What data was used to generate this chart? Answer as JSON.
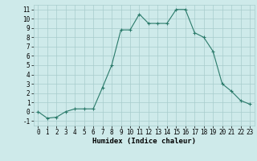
{
  "x": [
    0,
    1,
    2,
    3,
    4,
    5,
    6,
    7,
    8,
    9,
    10,
    11,
    12,
    13,
    14,
    15,
    16,
    17,
    18,
    19,
    20,
    21,
    22,
    23
  ],
  "y": [
    0.0,
    -0.7,
    -0.6,
    0.0,
    0.3,
    0.3,
    0.3,
    2.6,
    5.0,
    8.8,
    8.8,
    10.5,
    9.5,
    9.5,
    9.5,
    11.0,
    11.0,
    8.5,
    8.0,
    6.5,
    3.0,
    2.2,
    1.2,
    0.8
  ],
  "xlabel": "Humidex (Indice chaleur)",
  "xlim": [
    -0.5,
    23.5
  ],
  "ylim": [
    -1.5,
    11.5
  ],
  "yticks": [
    -1,
    0,
    1,
    2,
    3,
    4,
    5,
    6,
    7,
    8,
    9,
    10,
    11
  ],
  "xticks": [
    0,
    1,
    2,
    3,
    4,
    5,
    6,
    7,
    8,
    9,
    10,
    11,
    12,
    13,
    14,
    15,
    16,
    17,
    18,
    19,
    20,
    21,
    22,
    23
  ],
  "line_color": "#2a7a6a",
  "bg_color": "#ceeaea",
  "grid_color": "#a8cccc",
  "tick_fontsize": 5.5,
  "label_fontsize": 6.5
}
